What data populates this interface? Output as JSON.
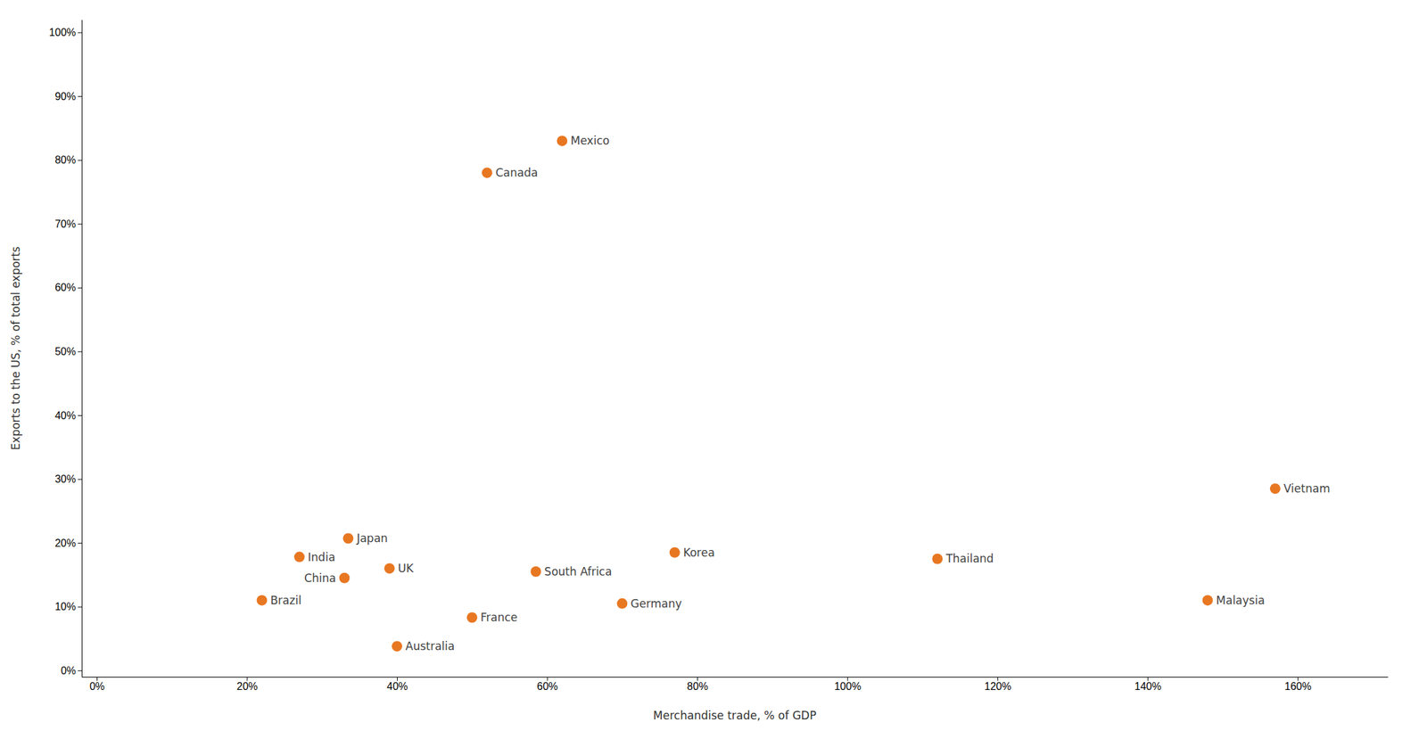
{
  "chart_data": {
    "type": "scatter",
    "x_label": "Merchandise trade, % of GDP",
    "y_label": "Exports to the US, % of total exports",
    "labels": [
      "Mexico",
      "Canada",
      "Vietnam",
      "India",
      "Japan",
      "UK",
      "South Africa",
      "Korea",
      "Thailand",
      "Malaysia",
      "Brazil",
      "China",
      "France",
      "Australia",
      "Germany"
    ],
    "x": [
      0.62,
      0.52,
      1.57,
      0.27,
      0.335,
      0.39,
      0.585,
      0.77,
      1.12,
      1.48,
      0.22,
      0.33,
      0.5,
      0.4,
      0.7
    ],
    "values": [
      0.83,
      0.78,
      0.285,
      0.178,
      0.207,
      0.16,
      0.155,
      0.185,
      0.175,
      0.11,
      0.11,
      0.145,
      0.083,
      0.038,
      0.105
    ],
    "color": "#E87722",
    "xlim": [
      -0.02,
      1.72
    ],
    "ylim": [
      -0.01,
      1.02
    ],
    "xticks": [
      {
        "value": 0.0,
        "label": "0%"
      },
      {
        "value": 0.2,
        "label": "20%"
      },
      {
        "value": 0.4,
        "label": "40%"
      },
      {
        "value": 0.6,
        "label": "60%"
      },
      {
        "value": 0.8,
        "label": "80%"
      },
      {
        "value": 1.0,
        "label": "100%"
      },
      {
        "value": 1.2,
        "label": "120%"
      },
      {
        "value": 1.4,
        "label": "140%"
      },
      {
        "value": 1.6,
        "label": "160%"
      }
    ],
    "yticks": [
      {
        "value": 0.0,
        "label": "0%"
      },
      {
        "value": 0.1,
        "label": "10%"
      },
      {
        "value": 0.2,
        "label": "20%"
      },
      {
        "value": 0.3,
        "label": "30%"
      },
      {
        "value": 0.4,
        "label": "40%"
      },
      {
        "value": 0.5,
        "label": "50%"
      },
      {
        "value": 0.6,
        "label": "60%"
      },
      {
        "value": 0.7,
        "label": "70%"
      },
      {
        "value": 0.8,
        "label": "80%"
      },
      {
        "value": 0.9,
        "label": "90%"
      },
      {
        "value": 1.0,
        "label": "100%"
      }
    ],
    "grid": false
  }
}
